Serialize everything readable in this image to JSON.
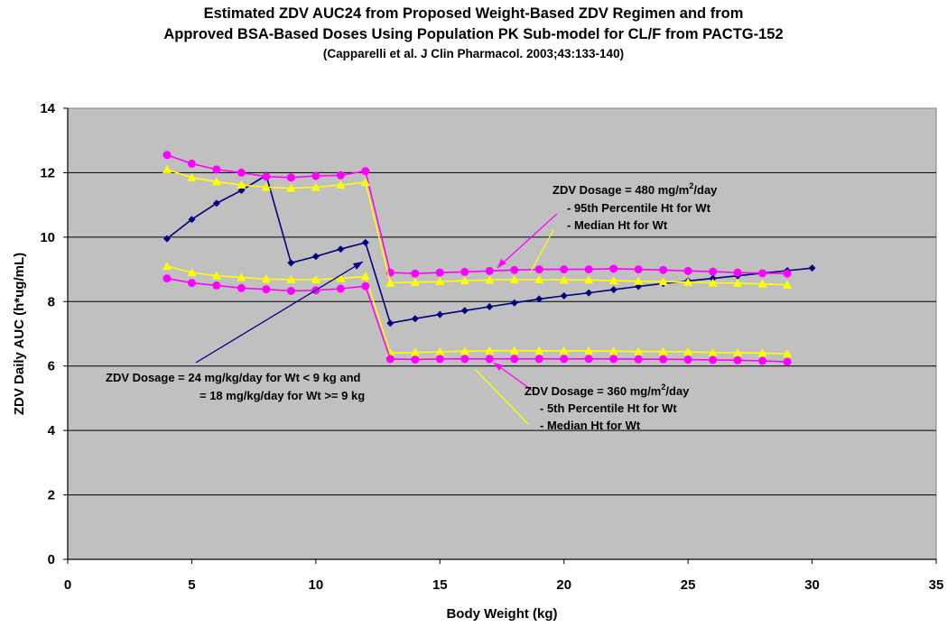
{
  "chart_data": {
    "type": "line",
    "title_line1": "Estimated ZDV AUC24 from Proposed Weight-Based ZDV Regimen and from",
    "title_line2": "Approved BSA-Based Doses Using Population PK Sub-model for CL/F from PACTG-152",
    "subtitle": "(Capparelli et al.  J Clin Pharmacol. 2003;43:133-140)",
    "xlabel": "Body Weight  (kg)",
    "ylabel": "ZDV Daily AUC  (h*ug/mL)",
    "xlim": [
      0,
      35
    ],
    "ylim": [
      0,
      14
    ],
    "xticks": [
      "0",
      "5",
      "10",
      "15",
      "20",
      "25",
      "30",
      "35"
    ],
    "yticks": [
      "0",
      "2",
      "4",
      "6",
      "8",
      "10",
      "12",
      "14"
    ],
    "grid": "horizontal",
    "plot_background": "#c0c0c0",
    "series": [
      {
        "color": "#000080",
        "marker": "diamond",
        "x": [
          4,
          5,
          6,
          7,
          8,
          9,
          10,
          11,
          12,
          13,
          14,
          15,
          16,
          17,
          18,
          19,
          20,
          21,
          22,
          23,
          24,
          25,
          26,
          27,
          28,
          29,
          30
        ],
        "y": [
          9.95,
          10.55,
          11.05,
          11.45,
          11.92,
          9.2,
          9.4,
          9.63,
          9.83,
          7.33,
          7.47,
          7.6,
          7.72,
          7.84,
          7.96,
          8.08,
          8.18,
          8.27,
          8.37,
          8.47,
          8.56,
          8.64,
          8.72,
          8.8,
          8.88,
          8.96,
          9.04
        ]
      },
      {
        "color": "#ff00ff",
        "marker": "circle",
        "x": [
          4,
          5,
          6,
          7,
          8,
          9,
          10,
          11,
          12,
          13,
          14,
          15,
          16,
          17,
          18,
          19,
          20,
          21,
          22,
          23,
          24,
          25,
          26,
          27,
          28,
          29
        ],
        "y": [
          12.55,
          12.28,
          12.1,
          12.0,
          11.88,
          11.85,
          11.9,
          11.92,
          12.05,
          8.9,
          8.87,
          8.9,
          8.92,
          8.95,
          8.98,
          9.0,
          9.0,
          9.0,
          9.02,
          9.0,
          8.98,
          8.95,
          8.93,
          8.9,
          8.88,
          8.87
        ]
      },
      {
        "color": "#ffff00",
        "marker": "triangle",
        "x": [
          4,
          5,
          6,
          7,
          8,
          9,
          10,
          11,
          12,
          13,
          14,
          15,
          16,
          17,
          18,
          19,
          20,
          21,
          22,
          23,
          24,
          25,
          26,
          27,
          28,
          29
        ],
        "y": [
          12.1,
          11.85,
          11.72,
          11.62,
          11.55,
          11.52,
          11.55,
          11.62,
          11.7,
          8.58,
          8.6,
          8.62,
          8.65,
          8.67,
          8.68,
          8.68,
          8.67,
          8.67,
          8.65,
          8.63,
          8.62,
          8.6,
          8.58,
          8.57,
          8.55,
          8.52
        ]
      },
      {
        "color": "#ffff00",
        "marker": "triangle",
        "x": [
          4,
          5,
          6,
          7,
          8,
          9,
          10,
          11,
          12,
          13,
          14,
          15,
          16,
          17,
          18,
          19,
          20,
          21,
          22,
          23,
          24,
          25,
          26,
          27,
          28,
          29
        ],
        "y": [
          9.1,
          8.9,
          8.8,
          8.75,
          8.7,
          8.68,
          8.68,
          8.72,
          8.78,
          6.4,
          6.42,
          6.44,
          6.46,
          6.47,
          6.48,
          6.47,
          6.47,
          6.47,
          6.46,
          6.45,
          6.45,
          6.44,
          6.42,
          6.41,
          6.4,
          6.38
        ]
      },
      {
        "color": "#ff00ff",
        "marker": "circle",
        "x": [
          4,
          5,
          6,
          7,
          8,
          9,
          10,
          11,
          12,
          13,
          14,
          15,
          16,
          17,
          18,
          19,
          20,
          21,
          22,
          23,
          24,
          25,
          26,
          27,
          28,
          29
        ],
        "y": [
          8.72,
          8.58,
          8.5,
          8.42,
          8.38,
          8.33,
          8.35,
          8.4,
          8.48,
          6.22,
          6.2,
          6.22,
          6.22,
          6.22,
          6.22,
          6.22,
          6.22,
          6.22,
          6.22,
          6.21,
          6.21,
          6.2,
          6.19,
          6.18,
          6.16,
          6.13
        ]
      }
    ],
    "annotations": {
      "bsa480_line1": "ZDV Dosage = 480 mg/m",
      "bsa480_line1_sup": "2",
      "bsa480_line1_tail": "/day",
      "bsa480_line2": "-  95th Percentile Ht for Wt",
      "bsa480_line3": "-  Median Ht for Wt",
      "wt_line1": "ZDV Dosage = 24 mg/kg/day for Wt < 9 kg and",
      "wt_line2": "= 18 mg/kg/day for Wt >= 9 kg",
      "bsa360_line1": "ZDV Dosage = 360 mg/m",
      "bsa360_line1_sup": "2",
      "bsa360_line1_tail": "/day",
      "bsa360_line2": "-  5th Percentile Ht for Wt",
      "bsa360_line3": "-  Median Ht for Wt"
    }
  }
}
